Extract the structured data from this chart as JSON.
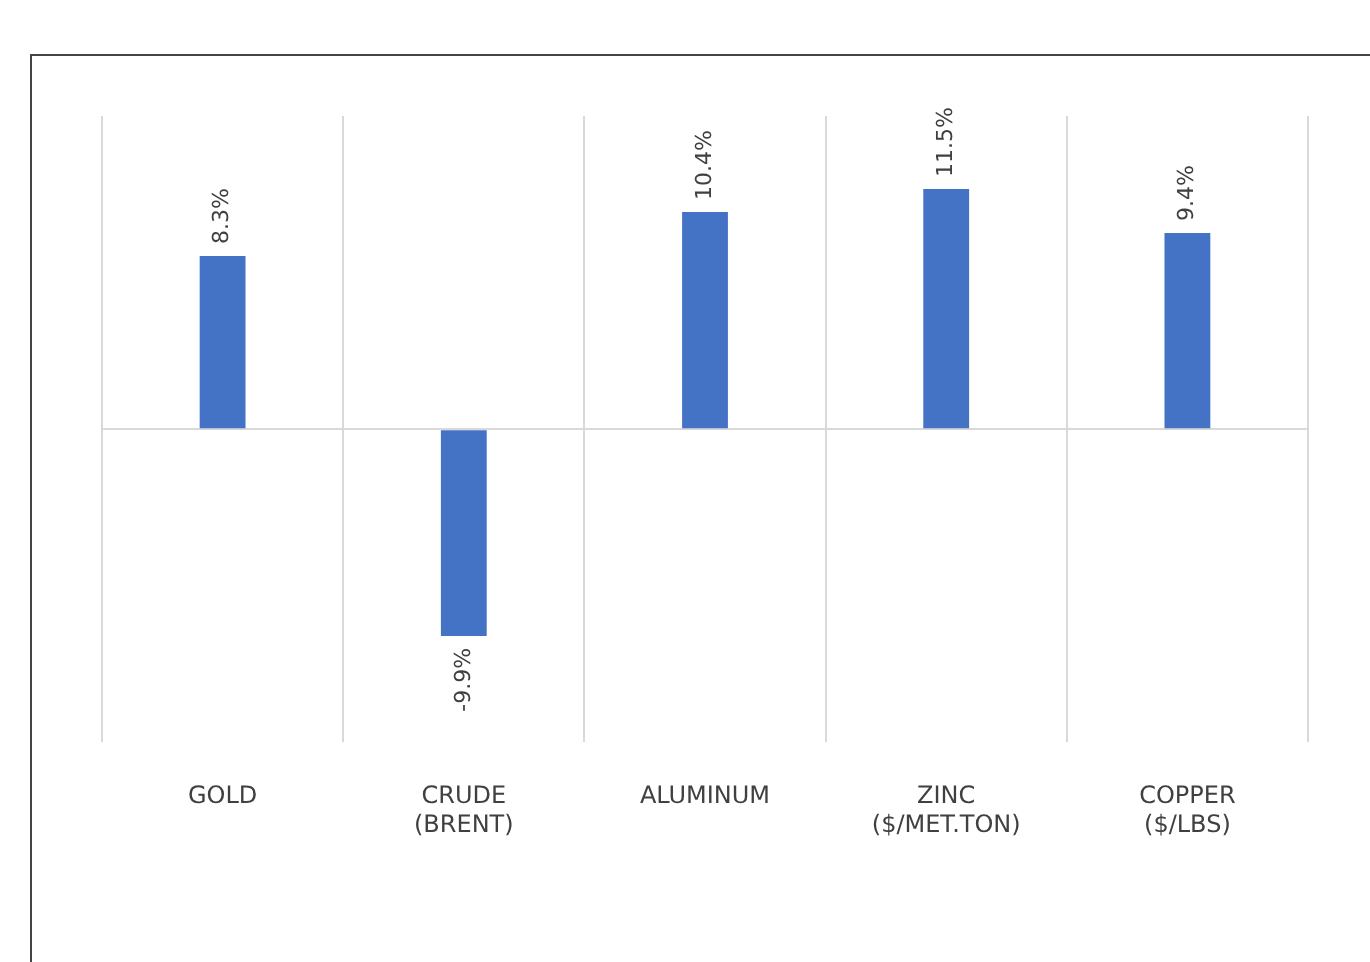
{
  "chart_data": {
    "type": "bar",
    "categories": [
      "GOLD",
      "CRUDE (BRENT)",
      "ALUMINUM",
      "ZINC ($/MET.TON)",
      "COPPER ($/LBS)"
    ],
    "series": [
      {
        "color": "#4472c4",
        "values": [
          8.3,
          -9.9,
          10.4,
          11.5,
          9.4
        ],
        "value_labels": [
          "8.3%",
          "-9.9%",
          "10.4%",
          "11.5%",
          "9.4%"
        ]
      }
    ],
    "grid": "x",
    "legend": false
  }
}
